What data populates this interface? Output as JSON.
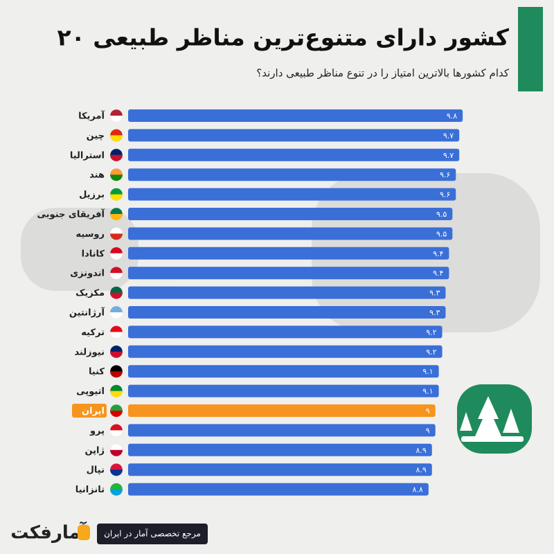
{
  "chart_data": {
    "type": "bar",
    "orientation": "horizontal",
    "title": "۲۰ کشور دارای متنوع‌ترین مناظر طبیعی",
    "subtitle": "کدام کشورها بالاترین امتیاز را در تنوع مناظر طبیعی دارند؟",
    "categories": [
      "آمریکا",
      "چین",
      "استرالیا",
      "هند",
      "برزیل",
      "آفریقای جنوبی",
      "روسیه",
      "کانادا",
      "اندونزی",
      "مکزیک",
      "آرژانتین",
      "ترکیه",
      "نیوزلند",
      "کنیا",
      "اتیوپی",
      "ایران",
      "پرو",
      "ژاپن",
      "نپال",
      "تانزانیا"
    ],
    "values": [
      9.8,
      9.7,
      9.7,
      9.6,
      9.6,
      9.5,
      9.5,
      9.4,
      9.4,
      9.3,
      9.3,
      9.2,
      9.2,
      9.1,
      9.1,
      9,
      9,
      8.9,
      8.9,
      8.8
    ],
    "value_labels": [
      "۹.۸",
      "۹.۷",
      "۹.۷",
      "۹.۶",
      "۹.۶",
      "۹.۵",
      "۹.۵",
      "۹.۴",
      "۹.۴",
      "۹.۳",
      "۹.۳",
      "۹.۲",
      "۹.۲",
      "۹.۱",
      "۹.۱",
      "۹",
      "۹",
      "۸.۹",
      "۸.۹",
      "۸.۸"
    ],
    "colors": [
      "#3a6fd8",
      "#3a6fd8",
      "#3a6fd8",
      "#3a6fd8",
      "#3a6fd8",
      "#3a6fd8",
      "#3a6fd8",
      "#3a6fd8",
      "#3a6fd8",
      "#3a6fd8",
      "#3a6fd8",
      "#3a6fd8",
      "#3a6fd8",
      "#3a6fd8",
      "#3a6fd8",
      "#f7941d",
      "#3a6fd8",
      "#3a6fd8",
      "#3a6fd8",
      "#3a6fd8"
    ],
    "xlim": [
      0,
      10
    ]
  },
  "footer": "مرجع تخصصی آمار در ایران",
  "brand": "آمارفکت"
}
